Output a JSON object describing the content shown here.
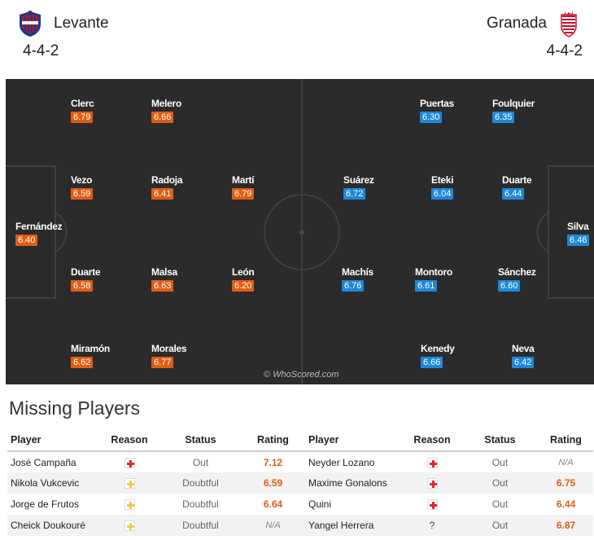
{
  "home": {
    "name": "Levante",
    "formation": "4-4-2",
    "color": "#e05d14"
  },
  "away": {
    "name": "Granada",
    "formation": "4-4-2",
    "color": "#1e88d8"
  },
  "pitch": {
    "home_players": [
      {
        "name": "Clerc",
        "rating": "6.79"
      },
      {
        "name": "Melero",
        "rating": "6.66"
      },
      {
        "name": "Vezo",
        "rating": "6.59"
      },
      {
        "name": "Radoja",
        "rating": "6.41"
      },
      {
        "name": "Martí",
        "rating": "6.79"
      },
      {
        "name": "Fernández",
        "rating": "6.40"
      },
      {
        "name": "Duarte",
        "rating": "6.58"
      },
      {
        "name": "Malsa",
        "rating": "6.63"
      },
      {
        "name": "León",
        "rating": "6.20"
      },
      {
        "name": "Miramón",
        "rating": "6.62"
      },
      {
        "name": "Morales",
        "rating": "6.77"
      }
    ],
    "away_players": [
      {
        "name": "Puertas",
        "rating": "6.30"
      },
      {
        "name": "Foulquier",
        "rating": "6.35"
      },
      {
        "name": "Suárez",
        "rating": "6.72"
      },
      {
        "name": "Eteki",
        "rating": "6.04"
      },
      {
        "name": "Duarte",
        "rating": "6.44"
      },
      {
        "name": "Silva",
        "rating": "6.46"
      },
      {
        "name": "Machís",
        "rating": "6.76"
      },
      {
        "name": "Montoro",
        "rating": "6.61"
      },
      {
        "name": "Sánchez",
        "rating": "6.60"
      },
      {
        "name": "Kenedy",
        "rating": "6.66"
      },
      {
        "name": "Neva",
        "rating": "6.42"
      }
    ],
    "watermark": "© WhoScored.com"
  },
  "missing": {
    "title": "Missing Players",
    "headers": [
      "Player",
      "Reason",
      "Status",
      "Rating",
      "Player",
      "Reason",
      "Status",
      "Rating"
    ],
    "rows": [
      {
        "home_player": "José Campaña",
        "home_reason": "injury-icon",
        "home_status": "Out",
        "home_rating": "7.12",
        "away_player": "Neyder Lozano",
        "away_reason": "injury-icon",
        "away_status": "Out",
        "away_rating": "N/A"
      },
      {
        "home_player": "Nikola Vukcevic",
        "home_reason": "doubtful-icon",
        "home_status": "Doubtful",
        "home_rating": "6.59",
        "away_player": "Maxime Gonalons",
        "away_reason": "injury-icon",
        "away_status": "Out",
        "away_rating": "6.75"
      },
      {
        "home_player": "Jorge de Frutos",
        "home_reason": "doubtful-icon",
        "home_status": "Doubtful",
        "home_rating": "6.64",
        "away_player": "Quini",
        "away_reason": "injury-icon",
        "away_status": "Out",
        "away_rating": "6.44"
      },
      {
        "home_player": "Cheick Doukouré",
        "home_reason": "doubtful-icon",
        "home_status": "Doubtful",
        "home_rating": "N/A",
        "away_player": "Yangel Herrera",
        "away_reason": "?",
        "away_status": "Out",
        "away_rating": "6.87"
      }
    ]
  }
}
